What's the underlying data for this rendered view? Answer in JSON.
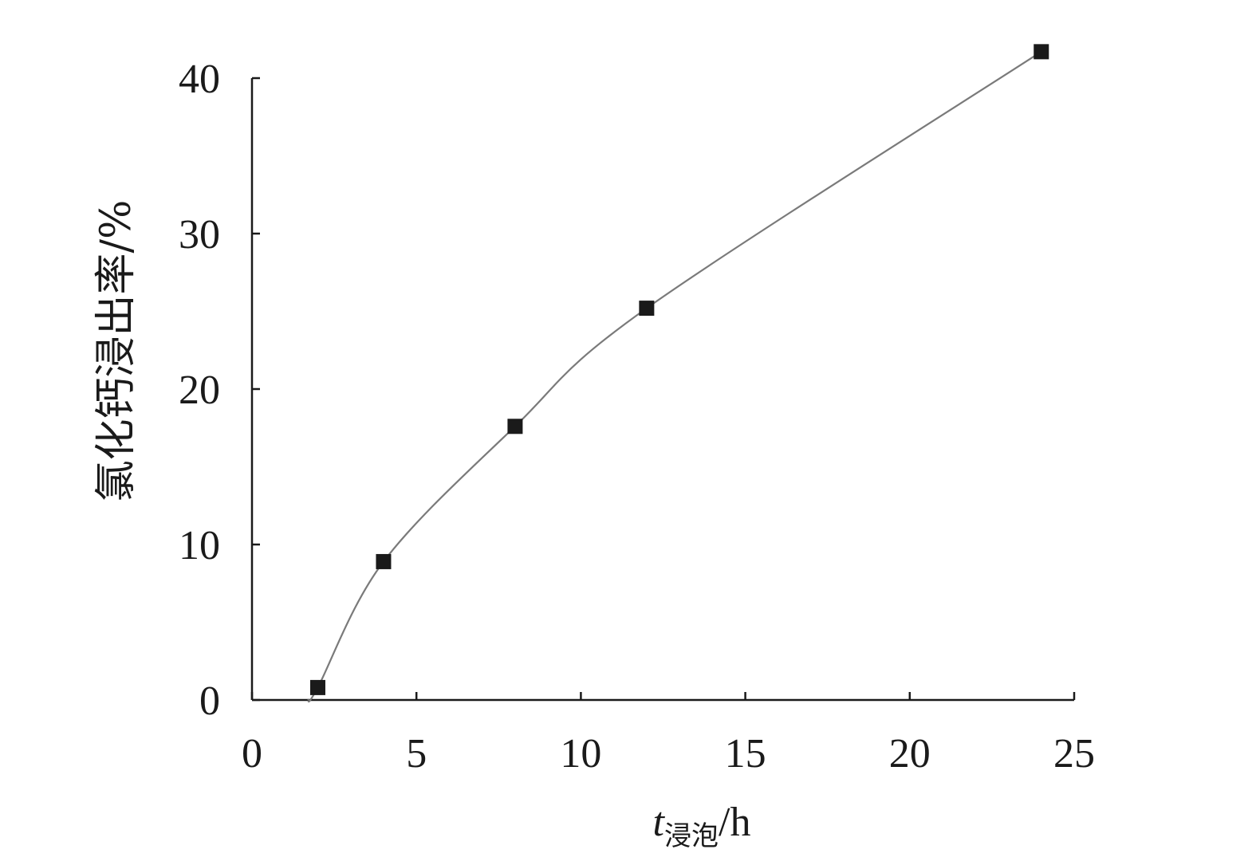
{
  "chart_data": {
    "type": "line",
    "title": "",
    "xlabel": {
      "var": "t",
      "sub": "浸泡",
      "unit": "/h"
    },
    "ylabel": "氯化钙浸出率/%",
    "xlim": [
      0,
      25
    ],
    "ylim": [
      0,
      40
    ],
    "xticks": [
      "0",
      "5",
      "10",
      "15",
      "20",
      "25"
    ],
    "yticks": [
      "0",
      "10",
      "20",
      "30",
      "40"
    ],
    "grid": false,
    "legend": "none",
    "series": [
      {
        "x": [
          2,
          4,
          8,
          12,
          24
        ],
        "y": [
          0.8,
          8.9,
          17.6,
          25.2,
          41.7
        ],
        "marker": "square",
        "color": "#1a1a1a",
        "line_color": "#7a7a7a"
      }
    ]
  }
}
